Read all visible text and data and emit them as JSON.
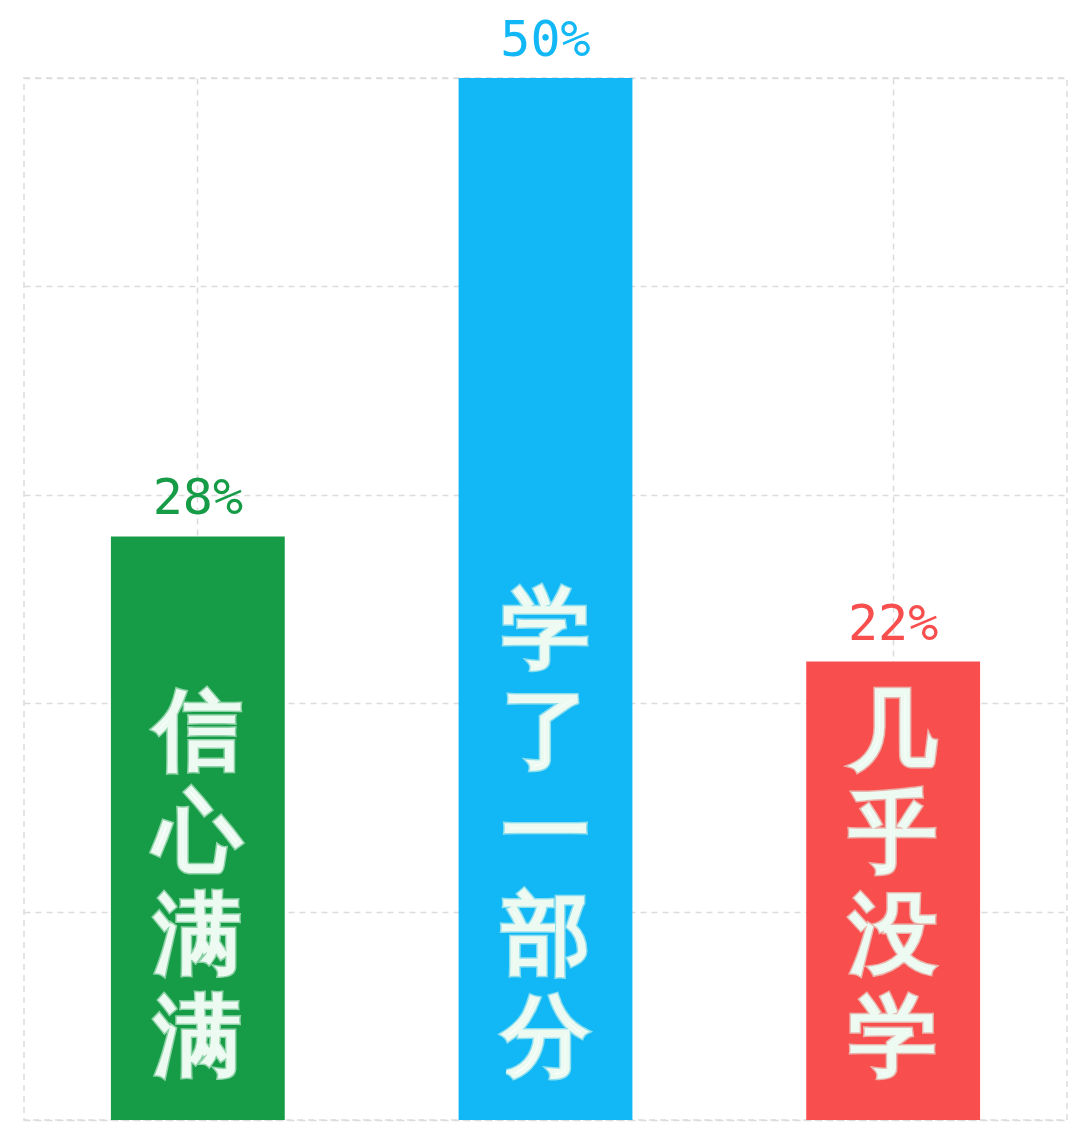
{
  "chart_data": {
    "type": "bar",
    "categories": [
      "信心满满",
      "学了一部分",
      "几乎没学"
    ],
    "values": [
      28,
      50,
      22
    ],
    "colors": [
      "#169c46",
      "#11b8f5",
      "#f84e4e"
    ],
    "value_labels": [
      "28%",
      "50%",
      "22%"
    ],
    "ylim": [
      0,
      50
    ],
    "yticks": [
      0,
      10,
      20,
      30,
      40,
      50
    ],
    "grid": true,
    "tick_labels": false
  }
}
